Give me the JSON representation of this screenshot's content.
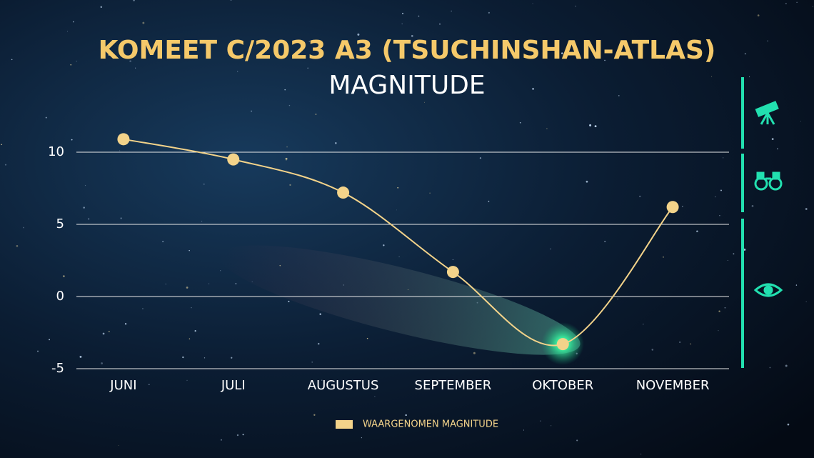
{
  "chart_data": {
    "type": "line",
    "title": "KOMEET C/2023 A3 (TSUCHINSHAN-ATLAS)",
    "subtitle": "MAGNITUDE",
    "categories": [
      "JUNI",
      "JULI",
      "AUGUSTUS",
      "SEPTEMBER",
      "OKTOBER",
      "NOVEMBER"
    ],
    "series": [
      {
        "name": "WAARGENOMEN MAGNITUDE",
        "color": "#f3d38a",
        "values": [
          10.9,
          9.5,
          7.2,
          1.7,
          -3.3,
          6.2
        ]
      }
    ],
    "ylim": [
      -5,
      10
    ],
    "yticks": [
      -5,
      0,
      5,
      10
    ],
    "grid": true,
    "legend": "bottom"
  }
}
